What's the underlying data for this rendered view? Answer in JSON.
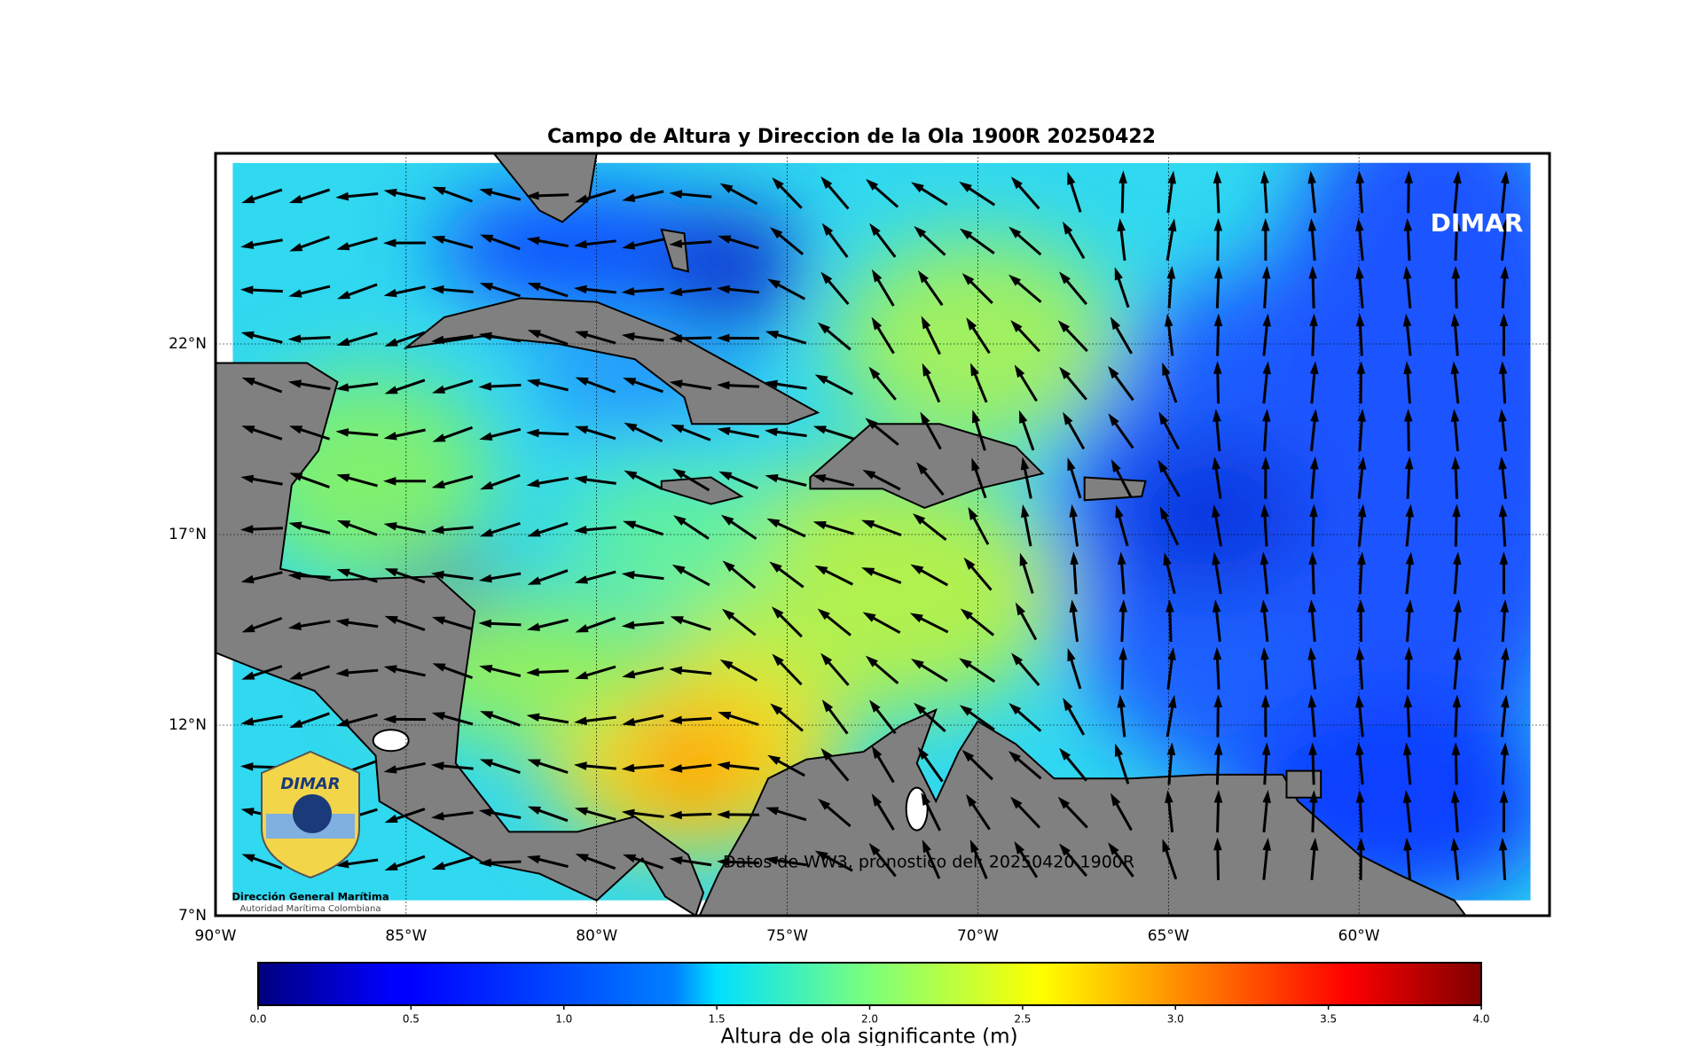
{
  "map": {
    "title": "Campo de Altura y Direccion de la Ola 1900R 20250422",
    "xlim": [
      -90,
      -55
    ],
    "ylim": [
      7,
      27
    ],
    "xticks": [
      {
        "value": -90,
        "label": "90°W"
      },
      {
        "value": -85,
        "label": "85°W"
      },
      {
        "value": -80,
        "label": "80°W"
      },
      {
        "value": -75,
        "label": "75°W"
      },
      {
        "value": -70,
        "label": "70°W"
      },
      {
        "value": -65,
        "label": "65°W"
      },
      {
        "value": -60,
        "label": "60°W"
      }
    ],
    "yticks": [
      {
        "value": 7,
        "label": "7°N"
      },
      {
        "value": 12,
        "label": "12°N"
      },
      {
        "value": 17,
        "label": "17°N"
      },
      {
        "value": 22,
        "label": "22°N"
      }
    ],
    "annotation": "Datos de WW3, pronostico del: 20250420 1900R",
    "watermark": "DIMAR",
    "logo": {
      "name": "Dirección General Marítima",
      "subtitle": "Autoridad Marítima Colombiana"
    }
  },
  "colorbar": {
    "label": "Altura de ola significante (m)",
    "lim": [
      0,
      4
    ],
    "ticks": [
      {
        "value": 0,
        "label": "0.0"
      },
      {
        "value": 0.5,
        "label": "0.5"
      },
      {
        "value": 1,
        "label": "1.0"
      },
      {
        "value": 1.5,
        "label": "1.5"
      },
      {
        "value": 2,
        "label": "2.0"
      },
      {
        "value": 2.5,
        "label": "2.5"
      },
      {
        "value": 3,
        "label": "3.0"
      },
      {
        "value": 3.5,
        "label": "3.5"
      },
      {
        "value": 4,
        "label": "4.0"
      }
    ]
  }
}
